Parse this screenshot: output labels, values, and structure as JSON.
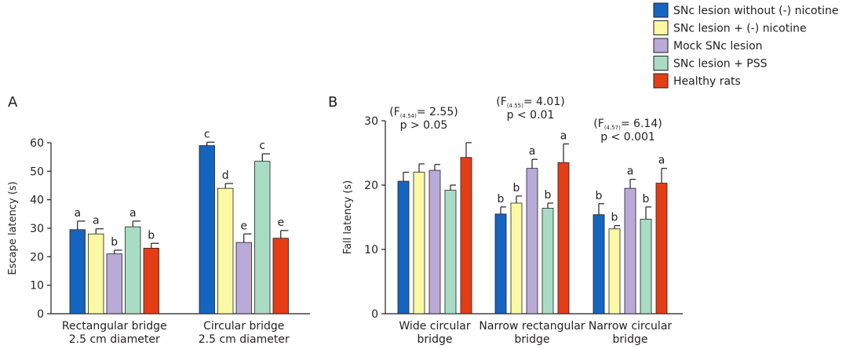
{
  "colors": {
    "SNc lesion without (-) nicotine": "#1565c0",
    "SNc lesion + (-) nicotine": "#fbf9a3",
    "Mock SNc lesion": "#b9aad8",
    "SNc lesion + PSS": "#a9dcc4",
    "Healthy rats": "#e53d16"
  },
  "legend": [
    "SNc lesion without (-) nicotine",
    "SNc lesion + (-) nicotine",
    "Mock SNc lesion",
    "SNc lesion + PSS",
    "Healthy rats"
  ],
  "chart_data": [
    {
      "panel": "A",
      "type": "bar",
      "ylabel": "Escape latency (s)",
      "ylim": [
        0,
        60
      ],
      "yticks": [
        0,
        10,
        20,
        30,
        40,
        50,
        60
      ],
      "categories": [
        [
          "Rectangular bridge",
          "2.5 cm diameter"
        ],
        [
          "Circular bridge",
          "2.5 cm diameter"
        ]
      ],
      "series": [
        {
          "name": "SNc lesion without (-) nicotine",
          "values": [
            29.5,
            59
          ],
          "errors": [
            3.0,
            1.2
          ],
          "labels": [
            "a",
            "c"
          ]
        },
        {
          "name": "SNc lesion + (-) nicotine",
          "values": [
            28,
            44
          ],
          "errors": [
            1.8,
            1.7
          ],
          "labels": [
            "a",
            "d"
          ]
        },
        {
          "name": "Mock SNc lesion",
          "values": [
            21,
            25
          ],
          "errors": [
            1.3,
            3.0
          ],
          "labels": [
            "b",
            "e"
          ]
        },
        {
          "name": "SNc lesion + PSS",
          "values": [
            30.5,
            53.5
          ],
          "errors": [
            2.0,
            2.6
          ],
          "labels": [
            "a",
            "c"
          ]
        },
        {
          "name": "Healthy rats",
          "values": [
            23,
            26.5
          ],
          "errors": [
            1.7,
            2.7
          ],
          "labels": [
            "b",
            "e"
          ]
        }
      ]
    },
    {
      "panel": "B",
      "type": "bar",
      "ylabel": "Fall latency (s)",
      "ylim": [
        0,
        30
      ],
      "yticks": [
        0,
        10,
        20,
        30
      ],
      "categories": [
        [
          "Wide circular",
          "bridge"
        ],
        [
          "Narrow rectangular",
          "bridge"
        ],
        [
          "Narrow circular",
          "bridge"
        ]
      ],
      "stats": [
        {
          "f_main": "(F",
          "f_sub": "(4.54)",
          "f_val": "= 2.55)",
          "p": "p > 0.05"
        },
        {
          "f_main": "(F",
          "f_sub": "(4.55)",
          "f_val": "= 4.01)",
          "p": "p < 0.01"
        },
        {
          "f_main": "(F",
          "f_sub": "(4.57)",
          "f_val": "= 6.14)",
          "p": "p < 0.001"
        }
      ],
      "series": [
        {
          "name": "SNc lesion without (-) nicotine",
          "values": [
            20.6,
            15.5,
            15.4
          ],
          "errors": [
            1.4,
            1.1,
            1.7
          ],
          "labels": [
            "",
            "b",
            "b"
          ]
        },
        {
          "name": "SNc lesion + (-) nicotine",
          "values": [
            22.0,
            17.2,
            13.2
          ],
          "errors": [
            1.3,
            1.1,
            0.5
          ],
          "labels": [
            "",
            "b",
            "b"
          ]
        },
        {
          "name": "Mock SNc lesion",
          "values": [
            22.3,
            22.6,
            19.5
          ],
          "errors": [
            0.9,
            1.4,
            1.4
          ],
          "labels": [
            "",
            "a",
            "a"
          ]
        },
        {
          "name": "SNc lesion + PSS",
          "values": [
            19.2,
            16.4,
            14.7
          ],
          "errors": [
            0.8,
            0.8,
            1.9
          ],
          "labels": [
            "",
            "b",
            "b"
          ]
        },
        {
          "name": "Healthy rats",
          "values": [
            24.3,
            23.5,
            20.3
          ],
          "errors": [
            2.3,
            2.9,
            2.3
          ],
          "labels": [
            "",
            "a",
            "a"
          ]
        }
      ]
    }
  ]
}
